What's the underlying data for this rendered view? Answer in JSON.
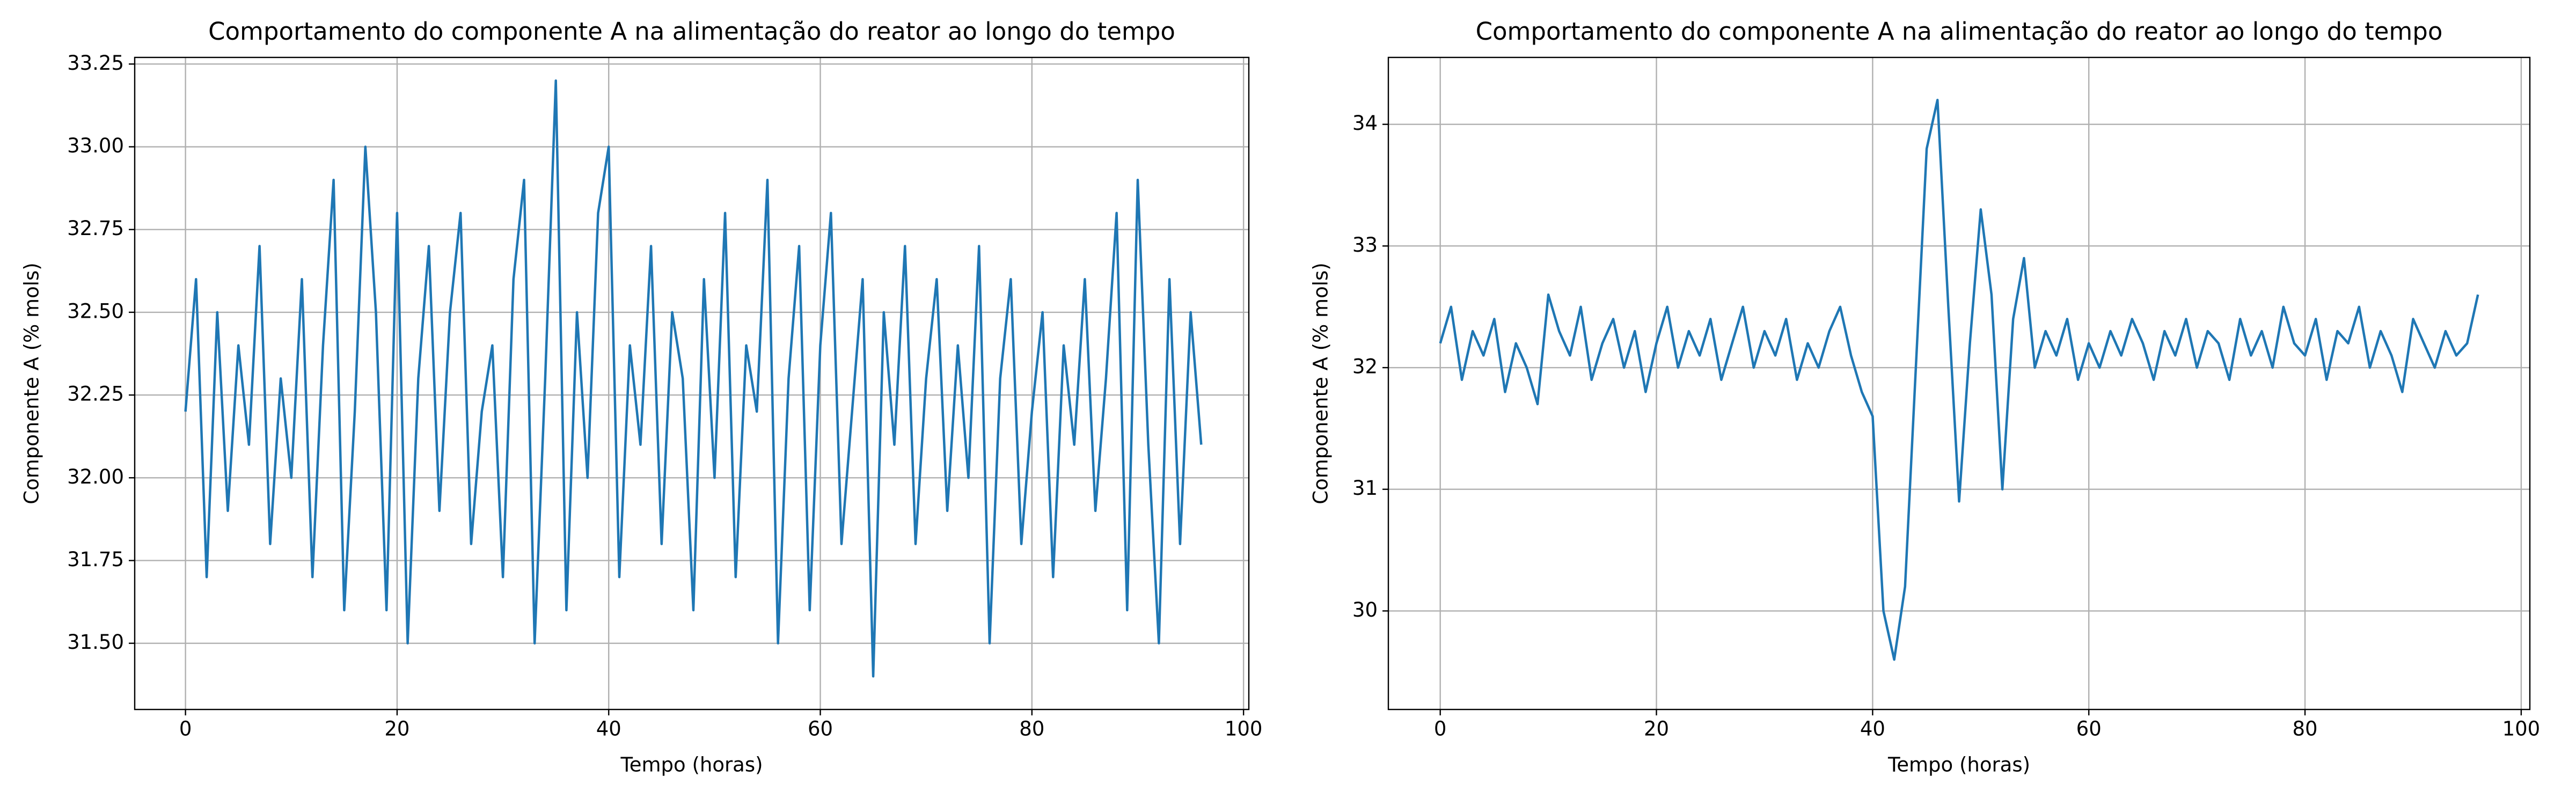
{
  "chart_data": [
    {
      "type": "line",
      "title": "Comportamento do componente A na alimentação do reator ao longo do tempo",
      "xlabel": "Tempo (horas)",
      "ylabel": "Componente A (% mols)",
      "x": [
        0,
        1,
        2,
        3,
        4,
        5,
        6,
        7,
        8,
        9,
        10,
        11,
        12,
        13,
        14,
        15,
        16,
        17,
        18,
        19,
        20,
        21,
        22,
        23,
        24,
        25,
        26,
        27,
        28,
        29,
        30,
        31,
        32,
        33,
        34,
        35,
        36,
        37,
        38,
        39,
        40,
        41,
        42,
        43,
        44,
        45,
        46,
        47,
        48,
        49,
        50,
        51,
        52,
        53,
        54,
        55,
        56,
        57,
        58,
        59,
        60,
        61,
        62,
        63,
        64,
        65,
        66,
        67,
        68,
        69,
        70,
        71,
        72,
        73,
        74,
        75,
        76,
        77,
        78,
        79,
        80,
        81,
        82,
        83,
        84,
        85,
        86,
        87,
        88,
        89,
        90,
        91,
        92,
        93,
        94,
        95,
        96
      ],
      "series": [
        {
          "name": "Componente A",
          "color": "#1f77b4",
          "values": [
            32.2,
            32.6,
            31.7,
            32.5,
            31.9,
            32.4,
            32.1,
            32.7,
            31.8,
            32.3,
            32.0,
            32.6,
            31.7,
            32.4,
            32.9,
            31.6,
            32.2,
            33.0,
            32.5,
            31.6,
            32.8,
            31.5,
            32.3,
            32.7,
            31.9,
            32.5,
            32.8,
            31.8,
            32.2,
            32.4,
            31.7,
            32.6,
            32.9,
            31.5,
            32.3,
            33.2,
            31.6,
            32.5,
            32.0,
            32.8,
            33.0,
            31.7,
            32.4,
            32.1,
            32.7,
            31.8,
            32.5,
            32.3,
            31.6,
            32.6,
            32.0,
            32.8,
            31.7,
            32.4,
            32.2,
            32.9,
            31.5,
            32.3,
            32.7,
            31.6,
            32.4,
            32.8,
            31.8,
            32.2,
            32.6,
            31.4,
            32.5,
            32.1,
            32.7,
            31.8,
            32.3,
            32.6,
            31.9,
            32.4,
            32.0,
            32.7,
            31.5,
            32.3,
            32.6,
            31.8,
            32.2,
            32.5,
            31.7,
            32.4,
            32.1,
            32.6,
            31.9,
            32.3,
            32.8,
            31.6,
            32.9,
            32.1,
            31.5,
            32.6,
            31.8,
            32.5,
            32.1
          ]
        }
      ],
      "xlim": [
        -4.8,
        100.5
      ],
      "ylim": [
        31.3,
        33.27
      ],
      "xticks": [
        0,
        20,
        40,
        60,
        80,
        100
      ],
      "yticks": [
        {
          "value": 31.5,
          "label": "31.50"
        },
        31.75,
        {
          "value": 32,
          "label": "32.00"
        },
        32.25,
        {
          "value": 32.5,
          "label": "32.50"
        },
        32.75,
        {
          "value": 33,
          "label": "33.00"
        },
        33.25
      ],
      "grid": true
    },
    {
      "type": "line",
      "title": "Comportamento do componente A na alimentação do reator ao longo do tempo",
      "xlabel": "Tempo (horas)",
      "ylabel": "Componente A (% mols)",
      "x": [
        0,
        1,
        2,
        3,
        4,
        5,
        6,
        7,
        8,
        9,
        10,
        11,
        12,
        13,
        14,
        15,
        16,
        17,
        18,
        19,
        20,
        21,
        22,
        23,
        24,
        25,
        26,
        27,
        28,
        29,
        30,
        31,
        32,
        33,
        34,
        35,
        36,
        37,
        38,
        39,
        40,
        41,
        42,
        43,
        44,
        45,
        46,
        47,
        48,
        49,
        50,
        51,
        52,
        53,
        54,
        55,
        56,
        57,
        58,
        59,
        60,
        61,
        62,
        63,
        64,
        65,
        66,
        67,
        68,
        69,
        70,
        71,
        72,
        73,
        74,
        75,
        76,
        77,
        78,
        79,
        80,
        81,
        82,
        83,
        84,
        85,
        86,
        87,
        88,
        89,
        90,
        91,
        92,
        93,
        94,
        95,
        96
      ],
      "series": [
        {
          "name": "Componente A",
          "color": "#1f77b4",
          "values": [
            32.2,
            32.5,
            31.9,
            32.3,
            32.1,
            32.4,
            31.8,
            32.2,
            32.0,
            31.7,
            32.6,
            32.3,
            32.1,
            32.5,
            31.9,
            32.2,
            32.4,
            32.0,
            32.3,
            31.8,
            32.2,
            32.5,
            32.0,
            32.3,
            32.1,
            32.4,
            31.9,
            32.2,
            32.5,
            32.0,
            32.3,
            32.1,
            32.4,
            31.9,
            32.2,
            32.0,
            32.3,
            32.5,
            32.1,
            31.8,
            31.6,
            30.0,
            29.6,
            30.2,
            32.0,
            33.8,
            34.2,
            32.5,
            30.9,
            32.2,
            33.3,
            32.6,
            31.0,
            32.4,
            32.9,
            32.0,
            32.3,
            32.1,
            32.4,
            31.9,
            32.2,
            32.0,
            32.3,
            32.1,
            32.4,
            32.2,
            31.9,
            32.3,
            32.1,
            32.4,
            32.0,
            32.3,
            32.2,
            31.9,
            32.4,
            32.1,
            32.3,
            32.0,
            32.5,
            32.2,
            32.1,
            32.4,
            31.9,
            32.3,
            32.2,
            32.5,
            32.0,
            32.3,
            32.1,
            31.8,
            32.4,
            32.2,
            32.0,
            32.3,
            32.1,
            32.2,
            32.6
          ]
        }
      ],
      "xlim": [
        -4.8,
        100.8
      ],
      "ylim": [
        29.19,
        34.55
      ],
      "xticks": [
        0,
        20,
        40,
        60,
        80,
        100
      ],
      "yticks": [
        30,
        31,
        32,
        33,
        34
      ],
      "grid": true
    }
  ]
}
